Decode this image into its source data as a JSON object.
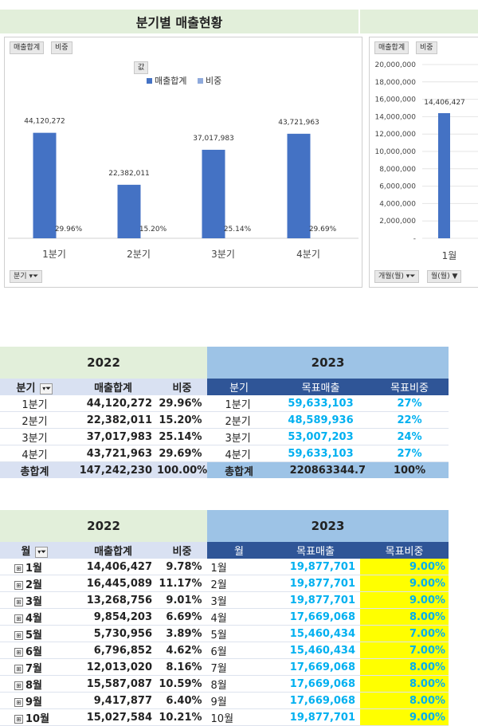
{
  "title": "분기별 매출현황",
  "colors": {
    "bar": "#4472c4",
    "header2022": "#e2efda",
    "header2023": "#9dc3e6",
    "sub2023": "#2f5597",
    "accent": "#00b0f0",
    "highlight": "#ffff00"
  },
  "chart1": {
    "field_buttons": [
      "매출합계",
      "비중"
    ],
    "value_button": "값",
    "legend": [
      "매출합계",
      "비중"
    ],
    "axis_button": "분기",
    "chart_data": {
      "type": "bar",
      "categories": [
        "1분기",
        "2분기",
        "3분기",
        "4분기"
      ],
      "series": [
        {
          "name": "매출합계",
          "values": [
            44120272,
            22382011,
            37017983,
            43721963
          ],
          "labels": [
            "44,120,272",
            "22,382,011",
            "37,017,983",
            "43,721,963"
          ]
        },
        {
          "name": "비중",
          "values": [
            0.2996,
            0.152,
            0.2514,
            0.2969
          ],
          "labels": [
            "29.96%",
            "15.20%",
            "25.14%",
            "29.69%"
          ]
        }
      ]
    }
  },
  "chart2": {
    "field_buttons": [
      "매출합계",
      "비중"
    ],
    "axis_buttons": [
      "개월(월)",
      "월(월)"
    ],
    "chart_data": {
      "type": "bar",
      "ylim": [
        0,
        20000000
      ],
      "yticks": [
        "20,000,000",
        "18,000,000",
        "16,000,000",
        "14,000,000",
        "12,000,000",
        "10,000,000",
        "8,000,000",
        "6,000,000",
        "4,000,000",
        "2,000,000",
        "-"
      ],
      "categories": [
        "1월"
      ],
      "values": [
        14406427
      ],
      "labels": [
        "14,406,427"
      ]
    }
  },
  "table1": {
    "year_left": "2022",
    "year_right": "2023",
    "headers_left": [
      "분기",
      "매출합계",
      "비중"
    ],
    "headers_right": [
      "분기",
      "목표매출",
      "목표비중"
    ],
    "rows": [
      [
        "1분기",
        "44,120,272",
        "29.96%",
        "1분기",
        "59,633,103",
        "27%"
      ],
      [
        "2분기",
        "22,382,011",
        "15.20%",
        "2분기",
        "48,589,936",
        "22%"
      ],
      [
        "3분기",
        "37,017,983",
        "25.14%",
        "3분기",
        "53,007,203",
        "24%"
      ],
      [
        "4분기",
        "43,721,963",
        "29.69%",
        "4분기",
        "59,633,103",
        "27%"
      ]
    ],
    "total": [
      "총합계",
      "147,242,230",
      "100.00%",
      "총합계",
      "220863344.7",
      "100%"
    ]
  },
  "table2": {
    "year_left": "2022",
    "year_right": "2023",
    "headers_left": [
      "월",
      "매출합계",
      "비중"
    ],
    "headers_right": [
      "월",
      "목표매출",
      "목표비중"
    ],
    "expand_symbol": "⊞",
    "rows": [
      [
        "1월",
        "14,406,427",
        "9.78%",
        "1월",
        "19,877,701",
        "9.00%"
      ],
      [
        "2월",
        "16,445,089",
        "11.17%",
        "2월",
        "19,877,701",
        "9.00%"
      ],
      [
        "3월",
        "13,268,756",
        "9.01%",
        "3월",
        "19,877,701",
        "9.00%"
      ],
      [
        "4월",
        "9,854,203",
        "6.69%",
        "4월",
        "17,669,068",
        "8.00%"
      ],
      [
        "5월",
        "5,730,956",
        "3.89%",
        "5월",
        "15,460,434",
        "7.00%"
      ],
      [
        "6월",
        "6,796,852",
        "4.62%",
        "6월",
        "15,460,434",
        "7.00%"
      ],
      [
        "7월",
        "12,013,020",
        "8.16%",
        "7월",
        "17,669,068",
        "8.00%"
      ],
      [
        "8월",
        "15,587,087",
        "10.59%",
        "8월",
        "17,669,068",
        "8.00%"
      ],
      [
        "9월",
        "9,417,877",
        "6.40%",
        "9월",
        "17,669,068",
        "8.00%"
      ],
      [
        "10월",
        "15,027,584",
        "10.21%",
        "10월",
        "19,877,701",
        "9.00%"
      ]
    ]
  }
}
